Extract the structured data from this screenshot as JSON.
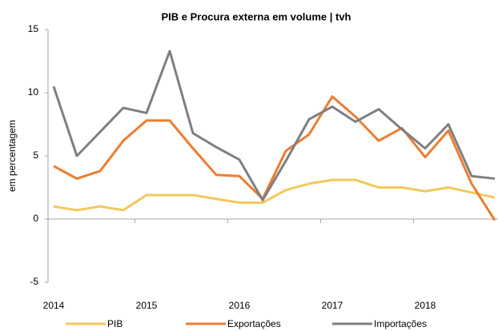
{
  "chart_data": {
    "type": "line",
    "title": "PIB e Procura externa em volume | tvh",
    "y_label": "em percentagem",
    "categories": [
      "2014",
      null,
      null,
      null,
      "2015",
      null,
      null,
      null,
      "2016",
      null,
      null,
      null,
      "2017",
      null,
      null,
      null,
      "2018",
      null,
      null,
      null
    ],
    "series": [
      {
        "name": "PIB",
        "color": "#f2c85b",
        "values": [
          1.0,
          0.7,
          1.0,
          0.7,
          1.9,
          1.9,
          1.9,
          1.6,
          1.3,
          1.3,
          2.3,
          2.8,
          3.1,
          3.1,
          2.5,
          2.5,
          2.2,
          2.5,
          2.1,
          1.7
        ]
      },
      {
        "name": "Exportações",
        "color": "#ed7d31",
        "values": [
          4.2,
          3.2,
          3.8,
          6.2,
          7.8,
          7.8,
          5.6,
          3.5,
          3.4,
          1.6,
          5.4,
          6.7,
          9.7,
          8.1,
          6.2,
          7.2,
          4.9,
          7.0,
          2.8,
          -0.1
        ]
      },
      {
        "name": "Importações",
        "color": "#7f7f7f",
        "values": [
          10.5,
          5.0,
          6.9,
          8.8,
          8.4,
          13.3,
          6.8,
          5.7,
          4.7,
          1.5,
          4.6,
          7.9,
          8.9,
          7.7,
          8.7,
          7.1,
          5.6,
          7.5,
          3.4,
          3.2
        ]
      }
    ],
    "ylim": [
      -5,
      15
    ],
    "yticks": [
      -5,
      0,
      5,
      10,
      15
    ],
    "grid": false,
    "legend": "bottom"
  }
}
